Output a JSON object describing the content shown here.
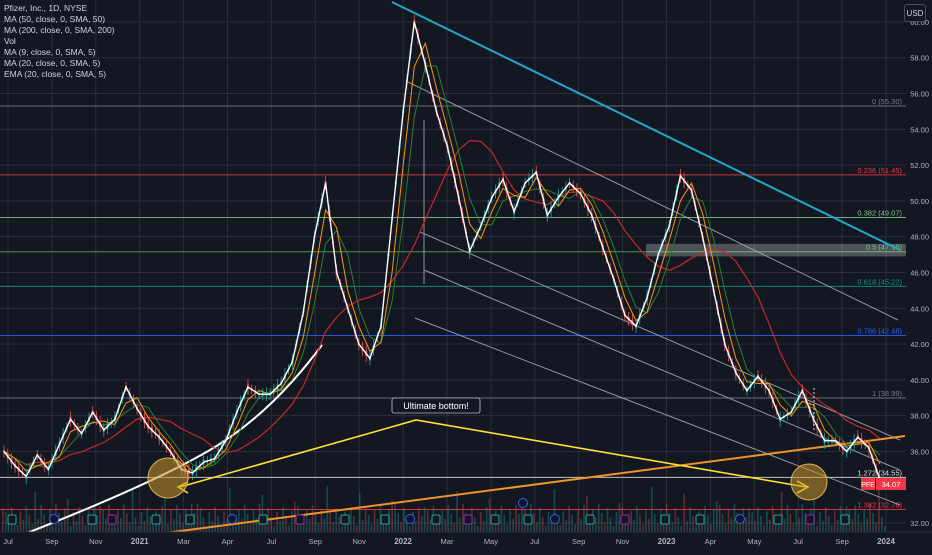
{
  "header": {
    "symbol_line": "Pfizer, Inc., 1D, NYSE",
    "indicators": [
      "MA (50, close, 0, SMA, 50)",
      "MA (200, close, 0, SMA, 200)",
      "Vol",
      "MA (9, close, 0, SMA, 5)",
      "MA (20, close, 0, SMA, 5)",
      "EMA (20, close, 0, SMA, 5)"
    ],
    "currency": "USD"
  },
  "colors": {
    "background": "#131722",
    "grid": "#2a2e39",
    "text": "#d1d4dc",
    "cyan_trendline": "#22a7c9",
    "orange_trendline": "#f0932b",
    "yellow_arrow": "#ffe135",
    "ma50": "#2e7d32",
    "ma200": "#c62828",
    "price_label_bg": "#f23645",
    "circle_fill": "#c8962a"
  },
  "annotation": {
    "callout": "Ultimate bottom!"
  },
  "price_badge": {
    "ticker": "PFE",
    "price": "34.07"
  },
  "chart_data": {
    "type": "line",
    "title": "Pfizer, Inc., 1D, NYSE",
    "ylim": [
      31.5,
      61
    ],
    "y_ticks": [
      "60.00",
      "58.00",
      "56.00",
      "54.00",
      "52.00",
      "50.00",
      "48.00",
      "46.00",
      "44.00",
      "42.00",
      "40.00",
      "38.00",
      "36.00",
      "32.00"
    ],
    "x_ticks": [
      "Jul",
      "Sep",
      "Nov",
      "2021",
      "Mar",
      "Apr",
      "Jul",
      "Sep",
      "Nov",
      "2022",
      "Mar",
      "May",
      "Jul",
      "Sep",
      "Nov",
      "2023",
      "Apr",
      "May",
      "Jul",
      "Sep",
      "2024"
    ],
    "fib_levels": [
      {
        "label": "0 (55.30)",
        "value": 55.3,
        "color": "#787b86"
      },
      {
        "label": "0.236 (51.45)",
        "value": 51.45,
        "color": "#f23645"
      },
      {
        "label": "0.382 (49.07)",
        "value": 49.07,
        "color": "#81c784"
      },
      {
        "label": "0.5 (47.16)",
        "value": 47.16,
        "color": "#4caf50"
      },
      {
        "label": "0.618 (45.22)",
        "value": 45.22,
        "color": "#089981"
      },
      {
        "label": "0.786 (42.48)",
        "value": 42.48,
        "color": "#2962ff"
      },
      {
        "label": "1 (38.99)",
        "value": 38.99,
        "color": "#787b86"
      },
      {
        "label": "1.272 (34.55)",
        "value": 34.55,
        "color": "#e0e0e0"
      },
      {
        "label": "1.382 (32.76)",
        "value": 32.76,
        "color": "#f23645"
      }
    ],
    "series": [
      {
        "values": [
          36.0,
          35.2,
          34.6,
          35.8,
          35.0,
          36.4,
          37.8,
          37.0,
          38.2,
          37.2,
          37.8,
          39.6,
          38.4,
          37.4,
          36.8,
          36.0,
          35.0,
          34.8,
          35.4,
          35.6,
          36.6,
          38.2,
          39.6,
          39.2,
          39.2,
          39.8,
          41.0,
          43.8,
          48.0,
          51.0,
          46.0,
          44.0,
          42.0,
          41.2,
          43.0,
          49.0,
          55.0,
          60.0,
          57.6,
          55.0,
          53.0,
          50.2,
          47.2,
          48.6,
          50.2,
          51.2,
          49.4,
          51.0,
          51.6,
          49.2,
          50.2,
          51.0,
          50.4,
          49.2,
          47.4,
          45.6,
          43.6,
          43.0,
          44.6,
          47.0,
          48.6,
          51.4,
          50.6,
          48.0,
          45.0,
          42.0,
          40.4,
          39.4,
          40.2,
          39.4,
          37.8,
          38.2,
          39.4,
          37.8,
          36.6,
          36.6,
          36.0,
          36.8,
          36.2,
          34.4
        ]
      }
    ]
  }
}
